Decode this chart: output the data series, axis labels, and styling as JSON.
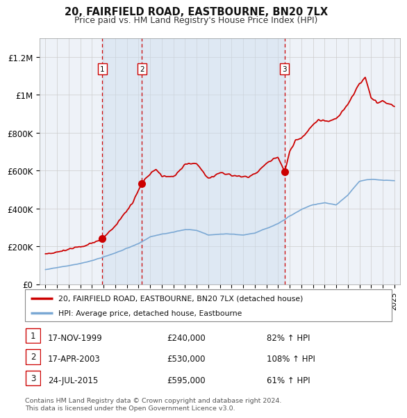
{
  "title": "20, FAIRFIELD ROAD, EASTBOURNE, BN20 7LX",
  "subtitle": "Price paid vs. HM Land Registry's House Price Index (HPI)",
  "background_color": "#ffffff",
  "plot_bg_color": "#eef2f8",
  "hpi_line_color": "#7aa8d4",
  "price_line_color": "#cc0000",
  "marker_color": "#cc0000",
  "span_color": "#ccdcee",
  "transactions": [
    {
      "num": 1,
      "date_str": "17-NOV-1999",
      "price": 240000,
      "pct": "82%",
      "x_year": 1999.88
    },
    {
      "num": 2,
      "date_str": "17-APR-2003",
      "price": 530000,
      "pct": "108%",
      "x_year": 2003.29
    },
    {
      "num": 3,
      "date_str": "24-JUL-2015",
      "price": 595000,
      "pct": "61%",
      "x_year": 2015.56
    }
  ],
  "ylim": [
    0,
    1300000
  ],
  "xlim_start": 1994.5,
  "xlim_end": 2025.5,
  "yticks": [
    0,
    200000,
    400000,
    600000,
    800000,
    1000000,
    1200000
  ],
  "ytick_labels": [
    "£0",
    "£200K",
    "£400K",
    "£600K",
    "£800K",
    "£1M",
    "£1.2M"
  ],
  "footnote": "Contains HM Land Registry data © Crown copyright and database right 2024.\nThis data is licensed under the Open Government Licence v3.0.",
  "legend_label_price": "20, FAIRFIELD ROAD, EASTBOURNE, BN20 7LX (detached house)",
  "legend_label_hpi": "HPI: Average price, detached house, Eastbourne",
  "hpi_key_points_x": [
    1995.0,
    1996.0,
    1997.0,
    1998.0,
    1999.0,
    2000.0,
    2001.0,
    2002.0,
    2003.0,
    2004.0,
    2005.0,
    2006.0,
    2007.0,
    2008.0,
    2009.0,
    2010.0,
    2011.0,
    2012.0,
    2013.0,
    2014.0,
    2015.0,
    2016.0,
    2017.0,
    2018.0,
    2019.0,
    2020.0,
    2021.0,
    2022.0,
    2023.0,
    2024.0,
    2025.0
  ],
  "hpi_key_points_y": [
    78000,
    88000,
    98000,
    110000,
    125000,
    145000,
    165000,
    190000,
    215000,
    250000,
    265000,
    275000,
    290000,
    285000,
    260000,
    265000,
    265000,
    260000,
    270000,
    295000,
    320000,
    360000,
    395000,
    420000,
    430000,
    420000,
    470000,
    545000,
    555000,
    550000,
    548000
  ],
  "price_key_points_x": [
    1995.0,
    1996.0,
    1997.0,
    1998.0,
    1999.0,
    1999.88,
    2001.0,
    2002.5,
    2003.29,
    2003.8,
    2004.5,
    2005.0,
    2006.0,
    2007.0,
    2008.0,
    2009.0,
    2010.0,
    2011.0,
    2012.0,
    2013.0,
    2014.0,
    2015.0,
    2015.56,
    2016.0,
    2016.5,
    2017.0,
    2018.0,
    2018.5,
    2019.0,
    2020.0,
    2021.0,
    2022.0,
    2022.5,
    2023.0,
    2023.5,
    2024.0,
    2024.5,
    2025.0
  ],
  "price_key_points_y": [
    160000,
    170000,
    185000,
    200000,
    215000,
    240000,
    310000,
    430000,
    530000,
    570000,
    610000,
    570000,
    570000,
    630000,
    640000,
    560000,
    590000,
    575000,
    565000,
    580000,
    640000,
    670000,
    595000,
    700000,
    760000,
    770000,
    840000,
    870000,
    860000,
    870000,
    950000,
    1060000,
    1090000,
    990000,
    960000,
    970000,
    950000,
    940000
  ]
}
